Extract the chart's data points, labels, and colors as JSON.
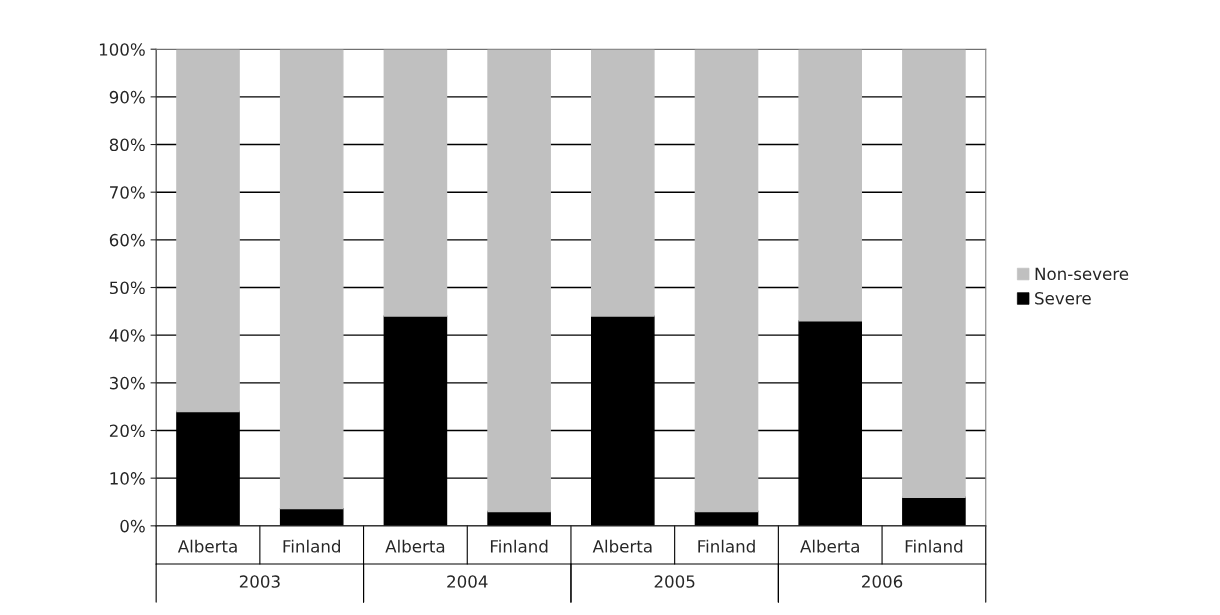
{
  "chart_data": {
    "type": "bar",
    "stacked": true,
    "categories": [
      "Alberta",
      "Finland",
      "Alberta",
      "Finland",
      "Alberta",
      "Finland",
      "Alberta",
      "Finland"
    ],
    "series": [
      {
        "name": "Severe",
        "color": "#000000",
        "values": [
          24,
          3.6,
          44,
          3,
          44,
          3,
          43,
          6
        ]
      },
      {
        "name": "Non-severe",
        "color": "#c0c0c0",
        "values": [
          76,
          96.4,
          56,
          97,
          56,
          97,
          57,
          94
        ]
      }
    ],
    "annotations": [
      "2003",
      "2004",
      "2005",
      "2006"
    ],
    "ylim": [
      0,
      100
    ],
    "yticks": [
      {
        "value": 0,
        "label": "0%"
      },
      {
        "value": 10,
        "label": "10%"
      },
      {
        "value": 20,
        "label": "20%"
      },
      {
        "value": 30,
        "label": "30%"
      },
      {
        "value": 40,
        "label": "40%"
      },
      {
        "value": 50,
        "label": "50%"
      },
      {
        "value": 60,
        "label": "60%"
      },
      {
        "value": 70,
        "label": "70%"
      },
      {
        "value": 80,
        "label": "80%"
      },
      {
        "value": 90,
        "label": "90%"
      },
      {
        "value": 100,
        "label": "100%"
      }
    ],
    "grid": "y",
    "legend": "right"
  }
}
